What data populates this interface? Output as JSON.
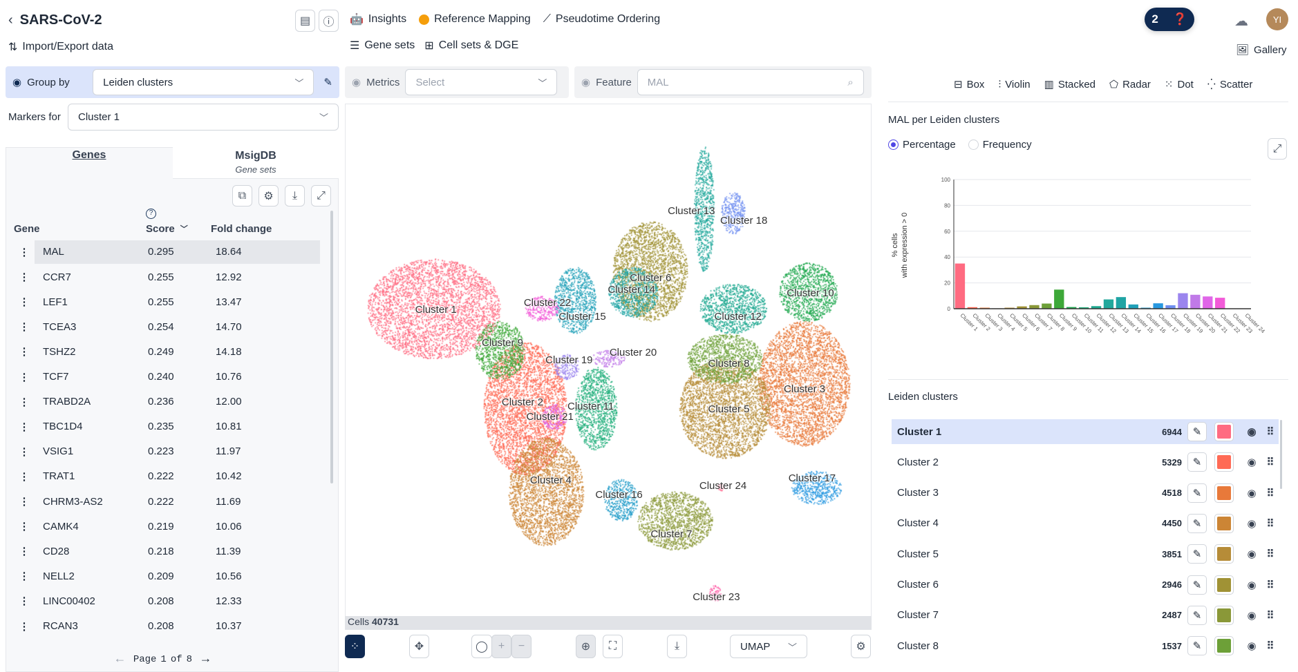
{
  "header": {
    "back_icon": "chevron-left",
    "title": "SARS-CoV-2",
    "import_export": "Import/Export data",
    "nav": [
      {
        "label": "Insights",
        "icon": "robot-icon"
      },
      {
        "label": "Reference Mapping",
        "icon": "crown-icon"
      },
      {
        "label": "Pseudotime Ordering",
        "icon": "trajectory-icon"
      }
    ],
    "nav2": [
      {
        "label": "Gene sets",
        "icon": "list-icon"
      },
      {
        "label": "Cell sets & DGE",
        "icon": "grid-icon"
      }
    ],
    "badge_count": "2",
    "avatar": "YI",
    "gallery": "Gallery"
  },
  "controls": {
    "group_by_label": "Group by",
    "group_by_value": "Leiden clusters",
    "metrics_label": "Metrics",
    "metrics_placeholder": "Select",
    "feature_label": "Feature",
    "feature_value": "MAL",
    "markers_for_label": "Markers for",
    "markers_for_value": "Cluster 1"
  },
  "markers": {
    "tabs": [
      {
        "label": "Genes"
      },
      {
        "label": "MsigDB",
        "sub": "Gene sets"
      }
    ],
    "columns": [
      "Gene",
      "Score",
      "Fold change"
    ],
    "rows": [
      [
        "MAL",
        "0.295",
        "18.64"
      ],
      [
        "CCR7",
        "0.255",
        "12.92"
      ],
      [
        "LEF1",
        "0.255",
        "13.47"
      ],
      [
        "TCEA3",
        "0.254",
        "14.70"
      ],
      [
        "TSHZ2",
        "0.249",
        "14.18"
      ],
      [
        "TCF7",
        "0.240",
        "10.76"
      ],
      [
        "TRABD2A",
        "0.236",
        "12.00"
      ],
      [
        "TBC1D4",
        "0.235",
        "10.81"
      ],
      [
        "VSIG1",
        "0.223",
        "11.97"
      ],
      [
        "TRAT1",
        "0.222",
        "10.42"
      ],
      [
        "CHRM3-AS2",
        "0.222",
        "11.69"
      ],
      [
        "CAMK4",
        "0.219",
        "10.06"
      ],
      [
        "CD28",
        "0.218",
        "11.39"
      ],
      [
        "NELL2",
        "0.209",
        "10.56"
      ],
      [
        "LINC00402",
        "0.208",
        "12.33"
      ],
      [
        "RCAN3",
        "0.208",
        "10.37"
      ]
    ],
    "page_label": "Page",
    "page": "1",
    "of_label": "of",
    "total_pages": "8"
  },
  "umap": {
    "cells_label": "Cells",
    "cells_count": "40731",
    "embedding": "UMAP"
  },
  "chart_types": [
    "Box",
    "Violin",
    "Stacked",
    "Radar",
    "Dot",
    "Scatter"
  ],
  "chart_data": {
    "type": "bar",
    "title": "MAL per Leiden clusters",
    "modes": [
      "Percentage",
      "Frequency"
    ],
    "selected_mode": "Percentage",
    "ylabel": "% cells\nwith expression > 0",
    "ylabel_lines": [
      "% cells",
      "with expression > 0"
    ],
    "ylim": [
      0,
      100
    ],
    "yticks": [
      "0",
      "20",
      "40",
      "60",
      "80",
      "100"
    ],
    "categories": [
      "Cluster 1",
      "Cluster 2",
      "Cluster 3",
      "Cluster 4",
      "Cluster 5",
      "Cluster 6",
      "Cluster 7",
      "Cluster 8",
      "Cluster 9",
      "Cluster 10",
      "Cluster 11",
      "Cluster 12",
      "Cluster 13",
      "Cluster 14",
      "Cluster 15",
      "Cluster 16",
      "Cluster 17",
      "Cluster 18",
      "Cluster 19",
      "Cluster 20",
      "Cluster 21",
      "Cluster 22",
      "Cluster 23",
      "Cluster 24"
    ],
    "values": [
      35,
      1.2,
      0.8,
      0.3,
      0.8,
      1.8,
      2.8,
      4,
      14.8,
      1.3,
      1.1,
      2,
      7.2,
      9,
      3.3,
      0.8,
      4.2,
      2.7,
      12,
      10.8,
      9.5,
      8.5,
      0,
      0
    ]
  },
  "clusters": {
    "title": "Leiden clusters",
    "selected": "Cluster 1",
    "colors": [
      "#ff6b81",
      "#ff6a55",
      "#e8793a",
      "#cc8535",
      "#b68c38",
      "#a09235",
      "#8a9838",
      "#6da038",
      "#3da838",
      "#20a84f",
      "#1fae7a",
      "#1ea890",
      "#22a89c",
      "#1fa4a4",
      "#20a0b8",
      "#1f9bc8",
      "#2898e0",
      "#6f8ef0",
      "#9b85ee",
      "#c07ae8",
      "#e066e8",
      "#f25bd8",
      "#ff5fa8",
      "#ff6b90"
    ],
    "list": [
      {
        "name": "Cluster 1",
        "count": "6944"
      },
      {
        "name": "Cluster 2",
        "count": "5329"
      },
      {
        "name": "Cluster 3",
        "count": "4518"
      },
      {
        "name": "Cluster 4",
        "count": "4450"
      },
      {
        "name": "Cluster 5",
        "count": "3851"
      },
      {
        "name": "Cluster 6",
        "count": "2946"
      },
      {
        "name": "Cluster 7",
        "count": "2487"
      },
      {
        "name": "Cluster 8",
        "count": "1537"
      }
    ]
  }
}
